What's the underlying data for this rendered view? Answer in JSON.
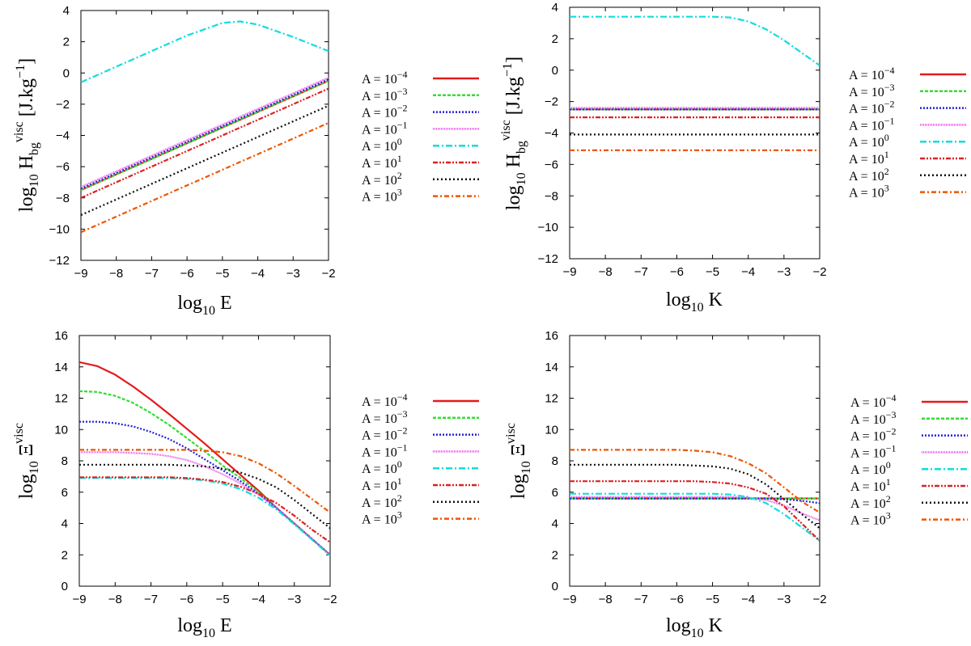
{
  "chart_data": [
    {
      "type": "line",
      "xlabel": {
        "base": "log",
        "sub": "10",
        "var": "E"
      },
      "ylabel": {
        "base": "log",
        "sub": "10",
        "sym": "H",
        "sym_sub": "bg",
        "sym_sup": "visc",
        "unit": "[J.kg",
        "unit_sup": "−1",
        "unit_end": "]"
      },
      "xlim": [
        -9,
        -2
      ],
      "ylim": [
        -12,
        4
      ],
      "xticks": [
        "−9",
        "−8",
        "−7",
        "−6",
        "−5",
        "−4",
        "−3",
        "−2"
      ],
      "yticks": [
        "−12",
        "−10",
        "−8",
        "−6",
        "−4",
        "−2",
        "0",
        "2",
        "4"
      ],
      "x": [
        -9,
        -8,
        -7,
        -6,
        -5,
        -4.5,
        -4,
        -3,
        -2
      ],
      "series": [
        {
          "name": "A = 10^-4",
          "values": [
            -7.5,
            -6.5,
            -5.5,
            -4.5,
            -3.5,
            -3.0,
            -2.5,
            -1.5,
            -0.5
          ]
        },
        {
          "name": "A = 10^-3",
          "values": [
            -7.5,
            -6.5,
            -5.5,
            -4.5,
            -3.5,
            -3.0,
            -2.5,
            -1.5,
            -0.5
          ]
        },
        {
          "name": "A = 10^-2",
          "values": [
            -7.4,
            -6.4,
            -5.4,
            -4.4,
            -3.4,
            -2.9,
            -2.4,
            -1.4,
            -0.4
          ]
        },
        {
          "name": "A = 10^-1",
          "values": [
            -7.3,
            -6.3,
            -5.3,
            -4.3,
            -3.3,
            -2.8,
            -2.3,
            -1.3,
            -0.3
          ]
        },
        {
          "name": "A = 10^0",
          "values": [
            -0.6,
            0.4,
            1.4,
            2.4,
            3.2,
            3.3,
            3.1,
            2.3,
            1.4
          ]
        },
        {
          "name": "A = 10^1",
          "values": [
            -8.0,
            -7.0,
            -6.0,
            -5.0,
            -4.0,
            -3.5,
            -3.0,
            -2.0,
            -1.0
          ]
        },
        {
          "name": "A = 10^2",
          "values": [
            -9.1,
            -8.1,
            -7.1,
            -6.1,
            -5.1,
            -4.6,
            -4.1,
            -3.1,
            -2.1
          ]
        },
        {
          "name": "A = 10^3",
          "values": [
            -10.2,
            -9.2,
            -8.2,
            -7.2,
            -6.2,
            -5.7,
            -5.2,
            -4.2,
            -3.2
          ]
        }
      ]
    },
    {
      "type": "line",
      "xlabel": {
        "base": "log",
        "sub": "10",
        "var": "K"
      },
      "ylabel": {
        "base": "log",
        "sub": "10",
        "sym": "H",
        "sym_sub": "bg",
        "sym_sup": "visc",
        "unit": "[J.kg",
        "unit_sup": "−1",
        "unit_end": "]"
      },
      "xlim": [
        -9,
        -2
      ],
      "ylim": [
        -12,
        4
      ],
      "xticks": [
        "−9",
        "−8",
        "−7",
        "−6",
        "−5",
        "−4",
        "−3",
        "−2"
      ],
      "yticks": [
        "−12",
        "−10",
        "−8",
        "−6",
        "−4",
        "−2",
        "0",
        "2",
        "4"
      ],
      "x": [
        -9,
        -8,
        -7,
        -6,
        -5,
        -4.5,
        -4,
        -3.5,
        -3,
        -2.5,
        -2
      ],
      "series": [
        {
          "name": "A = 10^-4",
          "values": [
            -2.5,
            -2.5,
            -2.5,
            -2.5,
            -2.5,
            -2.5,
            -2.5,
            -2.5,
            -2.5,
            -2.5,
            -2.5
          ]
        },
        {
          "name": "A = 10^-3",
          "values": [
            -2.5,
            -2.5,
            -2.5,
            -2.5,
            -2.5,
            -2.5,
            -2.5,
            -2.5,
            -2.5,
            -2.5,
            -2.5
          ]
        },
        {
          "name": "A = 10^-2",
          "values": [
            -2.5,
            -2.5,
            -2.5,
            -2.5,
            -2.5,
            -2.5,
            -2.5,
            -2.5,
            -2.5,
            -2.5,
            -2.5
          ]
        },
        {
          "name": "A = 10^-1",
          "values": [
            -2.4,
            -2.4,
            -2.4,
            -2.4,
            -2.4,
            -2.4,
            -2.4,
            -2.4,
            -2.4,
            -2.4,
            -2.4
          ]
        },
        {
          "name": "A = 10^0",
          "values": [
            3.4,
            3.4,
            3.4,
            3.4,
            3.4,
            3.35,
            3.1,
            2.6,
            1.9,
            1.1,
            0.3
          ]
        },
        {
          "name": "A = 10^1",
          "values": [
            -3.0,
            -3.0,
            -3.0,
            -3.0,
            -3.0,
            -3.0,
            -3.0,
            -3.0,
            -3.0,
            -3.0,
            -3.0
          ]
        },
        {
          "name": "A = 10^2",
          "values": [
            -4.1,
            -4.1,
            -4.1,
            -4.1,
            -4.1,
            -4.1,
            -4.1,
            -4.1,
            -4.1,
            -4.1,
            -4.1
          ]
        },
        {
          "name": "A = 10^3",
          "values": [
            -5.1,
            -5.1,
            -5.1,
            -5.1,
            -5.1,
            -5.1,
            -5.1,
            -5.1,
            -5.1,
            -5.1,
            -5.1
          ]
        }
      ]
    },
    {
      "type": "line",
      "xlabel": {
        "base": "log",
        "sub": "10",
        "var": "E"
      },
      "ylabel": {
        "base": "log",
        "sub": "10",
        "sym": "Ξ",
        "sym_sub": "",
        "sym_sup": "visc",
        "unit": "",
        "unit_sup": "",
        "unit_end": ""
      },
      "xlim": [
        -9,
        -2
      ],
      "ylim": [
        0,
        16
      ],
      "xticks": [
        "−9",
        "−8",
        "−7",
        "−6",
        "−5",
        "−4",
        "−3",
        "−2"
      ],
      "yticks": [
        "0",
        "2",
        "4",
        "6",
        "8",
        "10",
        "12",
        "14",
        "16"
      ],
      "x": [
        -9,
        -8.5,
        -8,
        -7.5,
        -7,
        -6.5,
        -6,
        -5.5,
        -5,
        -4.5,
        -4,
        -3.5,
        -3,
        -2.5,
        -2
      ],
      "series": [
        {
          "name": "A = 10^-4",
          "values": [
            14.3,
            14.05,
            13.5,
            12.75,
            11.9,
            11.0,
            10.05,
            9.1,
            8.1,
            7.1,
            6.1,
            5.0,
            4.0,
            3.0,
            2.0
          ]
        },
        {
          "name": "A = 10^-3",
          "values": [
            12.45,
            12.4,
            12.15,
            11.7,
            11.05,
            10.3,
            9.45,
            8.6,
            7.7,
            6.9,
            6.0,
            5.0,
            4.0,
            3.0,
            2.0
          ]
        },
        {
          "name": "A = 10^-2",
          "values": [
            10.5,
            10.5,
            10.4,
            10.2,
            9.85,
            9.4,
            8.8,
            8.1,
            7.4,
            6.7,
            5.9,
            5.0,
            4.0,
            3.0,
            2.0
          ]
        },
        {
          "name": "A = 10^-1",
          "values": [
            8.55,
            8.55,
            8.55,
            8.5,
            8.45,
            8.3,
            8.05,
            7.65,
            7.15,
            6.55,
            5.85,
            5.0,
            4.0,
            3.0,
            2.0
          ]
        },
        {
          "name": "A = 10^0",
          "values": [
            6.9,
            6.9,
            6.9,
            6.9,
            6.9,
            6.9,
            6.85,
            6.75,
            6.55,
            6.2,
            5.65,
            4.9,
            3.95,
            2.95,
            1.95
          ]
        },
        {
          "name": "A = 10^1",
          "values": [
            6.95,
            6.95,
            6.95,
            6.95,
            6.95,
            6.95,
            6.9,
            6.8,
            6.65,
            6.35,
            5.9,
            5.3,
            4.5,
            3.6,
            2.8
          ]
        },
        {
          "name": "A = 10^2",
          "values": [
            7.75,
            7.75,
            7.75,
            7.75,
            7.75,
            7.75,
            7.7,
            7.65,
            7.5,
            7.25,
            6.85,
            6.3,
            5.5,
            4.6,
            3.7
          ]
        },
        {
          "name": "A = 10^3",
          "values": [
            8.7,
            8.7,
            8.7,
            8.7,
            8.7,
            8.7,
            8.7,
            8.65,
            8.55,
            8.3,
            7.85,
            7.2,
            6.4,
            5.55,
            4.7
          ]
        }
      ]
    },
    {
      "type": "line",
      "xlabel": {
        "base": "log",
        "sub": "10",
        "var": "K"
      },
      "ylabel": {
        "base": "log",
        "sub": "10",
        "sym": "Ξ",
        "sym_sub": "",
        "sym_sup": "visc",
        "unit": "",
        "unit_sup": "",
        "unit_end": ""
      },
      "xlim": [
        -9,
        -2
      ],
      "ylim": [
        0,
        16
      ],
      "xticks": [
        "−9",
        "−8",
        "−7",
        "−6",
        "−5",
        "−4",
        "−3",
        "−2"
      ],
      "yticks": [
        "0",
        "2",
        "4",
        "6",
        "8",
        "10",
        "12",
        "14",
        "16"
      ],
      "x": [
        -9,
        -8.5,
        -8,
        -7.5,
        -7,
        -6.5,
        -6,
        -5.5,
        -5,
        -4.5,
        -4,
        -3.5,
        -3,
        -2.5,
        -2
      ],
      "series": [
        {
          "name": "A = 10^-4",
          "values": [
            5.6,
            5.6,
            5.6,
            5.6,
            5.6,
            5.6,
            5.6,
            5.6,
            5.6,
            5.6,
            5.6,
            5.6,
            5.6,
            5.6,
            5.6
          ]
        },
        {
          "name": "A = 10^-3",
          "values": [
            5.6,
            5.6,
            5.6,
            5.6,
            5.6,
            5.6,
            5.6,
            5.6,
            5.6,
            5.6,
            5.6,
            5.6,
            5.6,
            5.6,
            5.6
          ]
        },
        {
          "name": "A = 10^-2",
          "values": [
            5.6,
            5.6,
            5.6,
            5.6,
            5.6,
            5.6,
            5.6,
            5.6,
            5.6,
            5.6,
            5.6,
            5.6,
            5.55,
            5.45,
            5.3
          ]
        },
        {
          "name": "A = 10^-1",
          "values": [
            5.7,
            5.7,
            5.7,
            5.7,
            5.7,
            5.7,
            5.7,
            5.7,
            5.7,
            5.7,
            5.65,
            5.5,
            5.15,
            4.65,
            4.2
          ]
        },
        {
          "name": "A = 10^0",
          "values": [
            5.9,
            5.9,
            5.9,
            5.9,
            5.9,
            5.9,
            5.9,
            5.9,
            5.9,
            5.85,
            5.7,
            5.3,
            4.6,
            3.75,
            2.9
          ]
        },
        {
          "name": "A = 10^1",
          "values": [
            6.7,
            6.7,
            6.7,
            6.7,
            6.7,
            6.7,
            6.7,
            6.7,
            6.65,
            6.55,
            6.3,
            5.9,
            5.1,
            4.0,
            2.9
          ]
        },
        {
          "name": "A = 10^2",
          "values": [
            7.75,
            7.75,
            7.75,
            7.75,
            7.75,
            7.75,
            7.75,
            7.7,
            7.65,
            7.5,
            7.15,
            6.5,
            5.55,
            4.6,
            3.7
          ]
        },
        {
          "name": "A = 10^3",
          "values": [
            8.7,
            8.7,
            8.7,
            8.7,
            8.7,
            8.7,
            8.7,
            8.65,
            8.55,
            8.3,
            7.85,
            7.2,
            6.3,
            5.4,
            4.7
          ]
        }
      ]
    }
  ],
  "legend": [
    {
      "base": "A = 10",
      "exp": "−4",
      "color": "#e41a1c",
      "dash": ""
    },
    {
      "base": "A = 10",
      "exp": "−3",
      "color": "#33dd33",
      "dash": "4,2"
    },
    {
      "base": "A = 10",
      "exp": "−2",
      "color": "#2222dd",
      "dash": "2,2"
    },
    {
      "base": "A = 10",
      "exp": "−1",
      "color": "#ee44ee",
      "dash": "1,1"
    },
    {
      "base": "A = 10",
      "exp": "0",
      "color": "#11dddd",
      "dash": "8,3,2,3"
    },
    {
      "base": "A = 10",
      "exp": "1",
      "color": "#dd2222",
      "dash": "6,2,2,2,2,2"
    },
    {
      "base": "A = 10",
      "exp": "2",
      "color": "#111111",
      "dash": "2,3"
    },
    {
      "base": "A = 10",
      "exp": "3",
      "color": "#ee5500",
      "dash": "6,3,2,3"
    }
  ]
}
